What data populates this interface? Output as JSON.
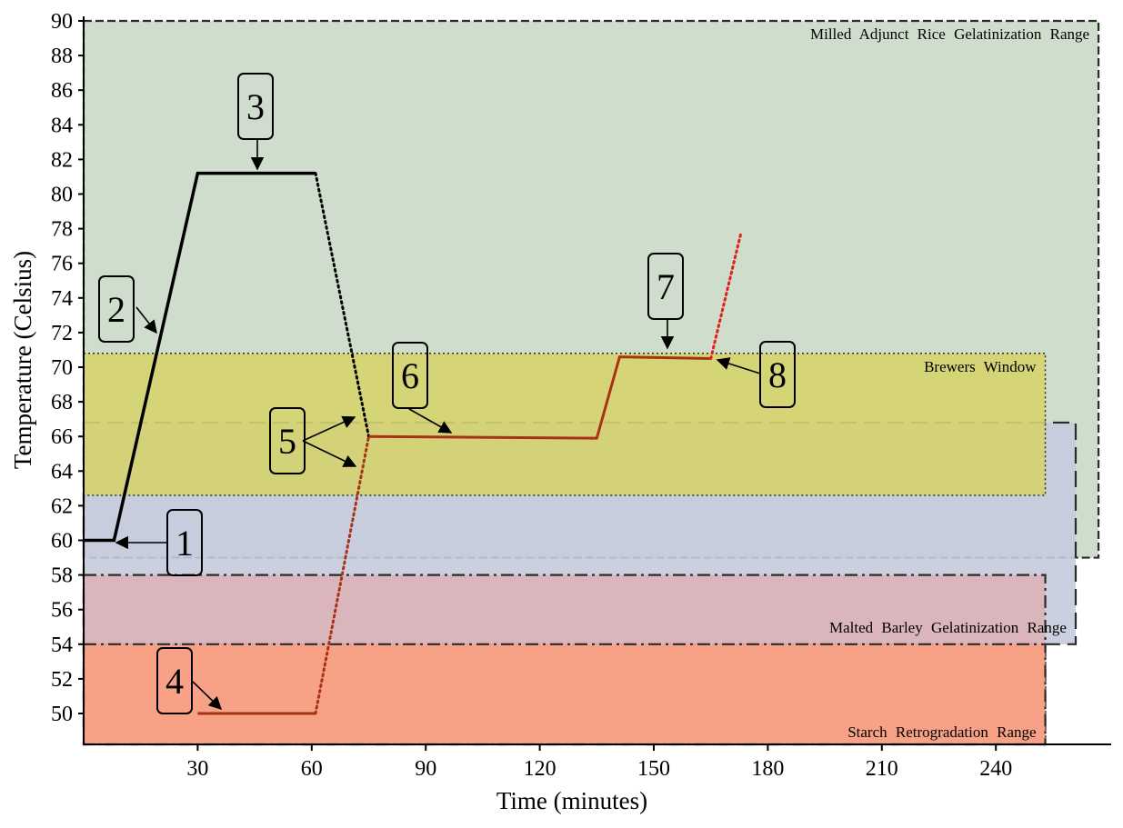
{
  "chart_data": {
    "type": "line",
    "xlabel": "Time (minutes)",
    "ylabel": "Temperature (Celsius)",
    "xlim": [
      0,
      270
    ],
    "ylim": [
      48,
      90
    ],
    "x_ticks": [
      30,
      60,
      90,
      120,
      150,
      180,
      210,
      240
    ],
    "y_ticks": [
      50,
      52,
      54,
      56,
      58,
      60,
      62,
      64,
      66,
      68,
      70,
      72,
      74,
      76,
      78,
      80,
      82,
      84,
      86,
      88,
      90
    ],
    "grid": false,
    "ranges": [
      {
        "name": "Milled Adjunct Rice Gelatinization Range",
        "x": [
          0,
          267
        ],
        "y": [
          59,
          90
        ],
        "color": "#cad9c8",
        "border": "short-dash"
      },
      {
        "name": "Malted Barley Gelatinization Range",
        "x": [
          0,
          261
        ],
        "y": [
          54,
          66.8
        ],
        "color": "#c5cbde",
        "border": "long-dash"
      },
      {
        "name": "Brewers Window",
        "x": [
          0,
          253
        ],
        "y": [
          62.6,
          70.8
        ],
        "color": "#d5d36e",
        "border": "dotted"
      },
      {
        "name": "",
        "x": [
          0,
          253
        ],
        "y": [
          48,
          58
        ],
        "color": "#dcb3b8",
        "border": "dash-dot"
      },
      {
        "name": "Starch Retrogradation Range",
        "x": [
          0,
          253
        ],
        "y": [
          48,
          54
        ],
        "color": "#f99f80",
        "border": "dash-dot"
      }
    ],
    "series": [
      {
        "style": "solid",
        "color": "#000000",
        "points": [
          [
            0,
            60
          ],
          [
            8,
            60
          ],
          [
            30,
            81.2
          ],
          [
            61,
            81.2
          ]
        ]
      },
      {
        "style": "dotted",
        "color": "#000000",
        "points": [
          [
            61,
            81.2
          ],
          [
            75,
            66
          ]
        ]
      },
      {
        "style": "solid",
        "color": "#a83214",
        "points": [
          [
            30,
            50
          ],
          [
            61,
            50
          ]
        ]
      },
      {
        "style": "dotted",
        "color": "#a83214",
        "points": [
          [
            61,
            50
          ],
          [
            75,
            66
          ]
        ]
      },
      {
        "style": "solid",
        "color": "#a83214",
        "points": [
          [
            75,
            66
          ],
          [
            135,
            65.9
          ],
          [
            141,
            70.6
          ],
          [
            165,
            70.5
          ]
        ]
      },
      {
        "style": "dotted",
        "color": "#e0201c",
        "points": [
          [
            165,
            70.5
          ],
          [
            173,
            77.8
          ]
        ]
      }
    ],
    "annotations": [
      {
        "label": "1",
        "box": [
          203,
          597
        ],
        "w": 38,
        "h": 72,
        "arrows": [
          [
            [
              185,
              597
            ],
            [
              128,
              597
            ]
          ]
        ]
      },
      {
        "label": "2",
        "box": [
          128,
          340
        ],
        "w": 38,
        "h": 72,
        "arrows": [
          [
            [
              150,
              338
            ],
            [
              172,
              366
            ]
          ]
        ]
      },
      {
        "label": "3",
        "box": [
          281,
          117
        ],
        "w": 38,
        "h": 72,
        "arrows": [
          [
            [
              283,
              153
            ],
            [
              283,
              186
            ]
          ]
        ]
      },
      {
        "label": "4",
        "box": [
          192,
          749
        ],
        "w": 38,
        "h": 72,
        "arrows": [
          [
            [
              212,
              750
            ],
            [
              243,
              780
            ]
          ]
        ]
      },
      {
        "label": "5",
        "box": [
          316,
          485
        ],
        "w": 38,
        "h": 72,
        "arrows": [
          [
            [
              333,
              485
            ],
            [
              390,
              459
            ]
          ],
          [
            [
              333,
              485
            ],
            [
              391,
              513
            ]
          ]
        ]
      },
      {
        "label": "6",
        "box": [
          451,
          413
        ],
        "w": 38,
        "h": 72,
        "arrows": [
          [
            [
              450,
              450
            ],
            [
              496,
              476
            ]
          ]
        ]
      },
      {
        "label": "7",
        "box": [
          732,
          315
        ],
        "w": 38,
        "h": 72,
        "arrows": [
          [
            [
              734,
              351
            ],
            [
              734,
              383
            ]
          ]
        ]
      },
      {
        "label": "8",
        "box": [
          855,
          412
        ],
        "w": 38,
        "h": 72,
        "arrows": [
          [
            [
              836,
              411
            ],
            [
              789,
              396
            ]
          ]
        ]
      }
    ]
  }
}
